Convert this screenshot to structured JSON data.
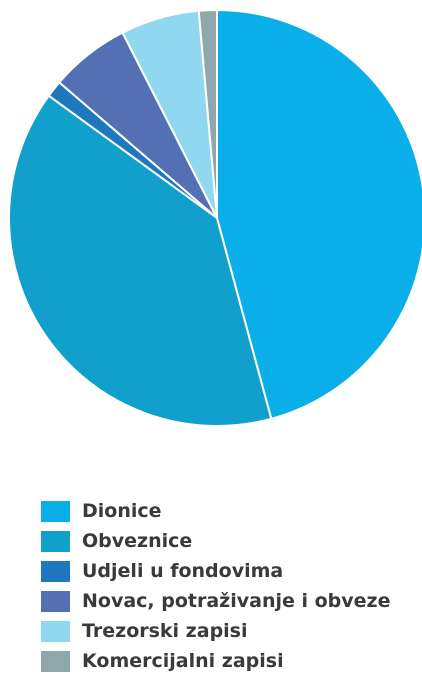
{
  "chart_data": {
    "type": "pie",
    "title": "",
    "series": [
      {
        "name": "Dionice",
        "value": 45.8,
        "color": "#0aaee8"
      },
      {
        "name": "Obveznice",
        "value": 39.2,
        "color": "#11a0cc"
      },
      {
        "name": "Udjeli u fondovima",
        "value": 1.3,
        "color": "#1e78c0"
      },
      {
        "name": "Novac, potraživanje i obveze",
        "value": 6.2,
        "color": "#5470b4"
      },
      {
        "name": "Trezorski zapisi",
        "value": 6.1,
        "color": "#8fd8f0"
      },
      {
        "name": "Komercijalni zapisi",
        "value": 1.4,
        "color": "#8fa6ab"
      }
    ],
    "legend_position": "bottom-left"
  }
}
